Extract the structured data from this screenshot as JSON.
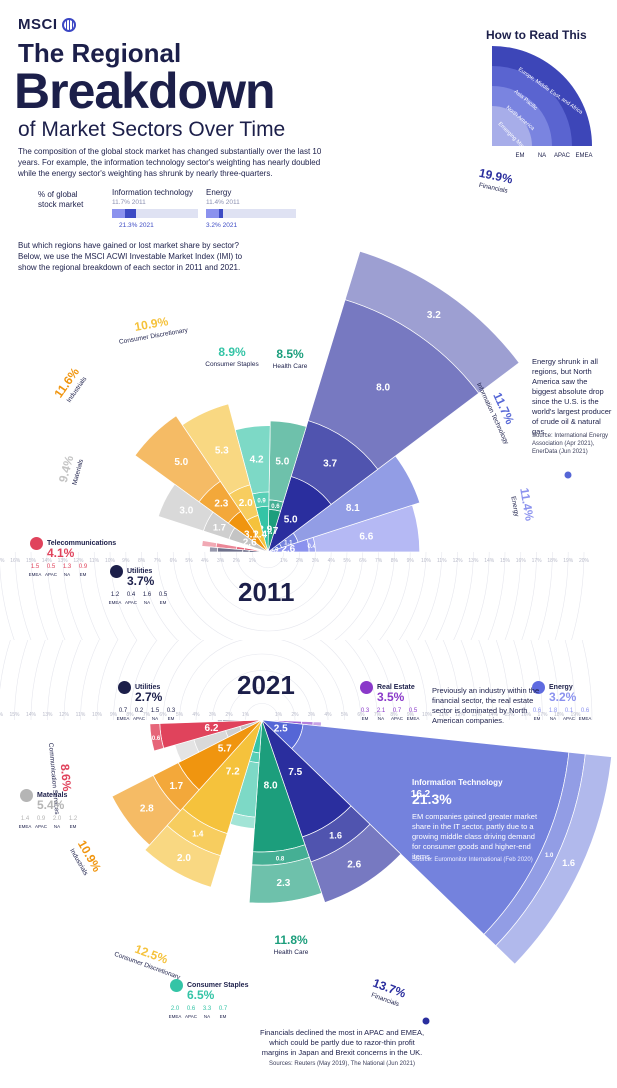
{
  "header": {
    "brand": "MSCI",
    "title_line1": "The Regional",
    "title_line2": "Breakdown",
    "title_line3": "of Market Sectors Over  Time"
  },
  "intro": "The composition of the global stock market has changed substantially over the last 10 years. For example, the information technology sector's weighting has nearly doubled while the energy sector's weighting has shrunk by nearly three-quarters.",
  "intro2": "But which regions have gained or lost market share by sector? Below, we use the MSCI ACWI Investable Market Index (IMI) to show the regional breakdown of each sector in 2011 and 2021.",
  "legend": {
    "axis_label_1": "% of global",
    "axis_label_2": "stock market",
    "it_label": "Information technology",
    "it_2011": "11.7% 2011",
    "it_2021": "21.3% 2021",
    "energy_label": "Energy",
    "energy_2011": "11.4% 2011",
    "energy_2021": "3.2% 2021"
  },
  "how_to_read": {
    "title": "How to Read This",
    "rings": [
      "Europe, Middle East, and Africa",
      "Asia Pacific",
      "North America",
      "Emerging Markets"
    ],
    "axis": [
      "EM",
      "NA",
      "APAC",
      "EMEA"
    ]
  },
  "colors": {
    "financials": "#2a2e9e",
    "it": "#5566d6",
    "energy": "#8b92ee",
    "health": "#1c9e7c",
    "staples": "#34c4a6",
    "discretionary": "#f5c23c",
    "industrials": "#f0950f",
    "materials": "#c4c4c4",
    "telecom": "#e0435c",
    "utilities": "#1c1f4a",
    "real_estate": "#8a39c9"
  },
  "chart_data": [
    {
      "type": "polar-bar",
      "year": "2011",
      "radial_ticks": [
        "1%",
        "2%",
        "3%",
        "4%",
        "5%",
        "6%",
        "7%",
        "8%",
        "9%",
        "10%",
        "11%",
        "12%",
        "13%",
        "14%",
        "15%",
        "16%",
        "17%",
        "18%",
        "19%",
        "20%"
      ],
      "sectors": [
        {
          "name": "Telecommunications",
          "total": "4.1%",
          "regions": [
            "EMEA",
            "APAC",
            "NA",
            "EM"
          ],
          "values": [
            1.5,
            0.5,
            1.3,
            0.9
          ]
        },
        {
          "name": "Utilities",
          "total": "3.7%",
          "regions": [
            "EMEA",
            "APAC",
            "NA",
            "EM"
          ],
          "values": [
            1.2,
            0.4,
            1.6,
            0.5
          ]
        },
        {
          "name": "Materials",
          "total": "9.4%",
          "values": [
            2.6,
            1.7,
            3.0
          ]
        },
        {
          "name": "Industrials",
          "total": "11.6%",
          "values": [
            3.1,
            2.3,
            5.0
          ]
        },
        {
          "name": "Consumer Discretionary",
          "total": "10.9%",
          "values": [
            2.4,
            2.0,
            5.3
          ]
        },
        {
          "name": "Consumer Staples",
          "total": "8.9%",
          "values": [
            2.9,
            0.9,
            4.2
          ]
        },
        {
          "name": "Health Care",
          "total": "8.5%",
          "values": [
            2.7,
            0.6,
            5.0
          ]
        },
        {
          "name": "Financials",
          "total": "19.9%",
          "values": [
            5.0,
            3.7,
            8.0,
            3.2
          ]
        },
        {
          "name": "Information Technology",
          "total": "11.7%",
          "values": [
            0.9,
            1.1,
            8.1
          ]
        },
        {
          "name": "Energy",
          "total": "11.4%",
          "values": [
            2.6,
            0.4,
            6.6
          ]
        }
      ]
    },
    {
      "type": "polar-bar",
      "year": "2021",
      "radial_ticks": [
        "1%",
        "2%",
        "3%",
        "4%",
        "5%",
        "6%",
        "7%",
        "8%",
        "9%",
        "10%",
        "11%",
        "12%",
        "13%",
        "14%",
        "15%",
        "16%",
        "17%",
        "18%",
        "19%",
        "20%"
      ],
      "sectors": [
        {
          "name": "Utilities",
          "total": "2.7%",
          "regions": [
            "EMEA",
            "APAC",
            "NA",
            "EM"
          ],
          "values": [
            0.7,
            0.2,
            1.5,
            0.3
          ]
        },
        {
          "name": "Communication Services",
          "total": "8.6%",
          "values": [
            6.2,
            0.6
          ]
        },
        {
          "name": "Materials",
          "total": "5.4%",
          "regions": [
            "EMEA",
            "APAC",
            "NA",
            "EM"
          ],
          "values": [
            1.4,
            0.9,
            2.0,
            1.2
          ]
        },
        {
          "name": "Industrials",
          "total": "10.9%",
          "values": [
            5.7,
            1.7,
            2.8
          ]
        },
        {
          "name": "Consumer Discretionary",
          "total": "12.5%",
          "values": [
            7.2,
            1.4,
            2.0
          ]
        },
        {
          "name": "Consumer Staples",
          "total": "6.5%",
          "regions": [
            "EMEA",
            "APAC",
            "NA",
            "EM"
          ],
          "values": [
            2.0,
            0.6,
            3.3,
            0.7
          ]
        },
        {
          "name": "Health Care",
          "total": "11.8%",
          "values": [
            8.0,
            0.8,
            2.3
          ]
        },
        {
          "name": "Financials",
          "total": "13.7%",
          "values": [
            7.5,
            1.6,
            2.6
          ]
        },
        {
          "name": "Information Technology",
          "total": "21.3%",
          "values": [
            2.5,
            16.2,
            1.0,
            1.6
          ]
        },
        {
          "name": "Real Estate",
          "total": "3.5%",
          "regions": [
            "EM",
            "NA",
            "APAC",
            "EMEA"
          ],
          "values": [
            0.3,
            2.1,
            0.7,
            0.5
          ]
        },
        {
          "name": "Energy",
          "total": "3.2%",
          "regions": [
            "EM",
            "NA",
            "APAC",
            "EMEA"
          ],
          "values": [
            0.6,
            1.8,
            0.1,
            0.6
          ]
        }
      ]
    }
  ],
  "notes": {
    "energy_2011": "Energy shrunk in all regions, but North America saw the biggest absolute drop since the U.S. is the world's largest producer of crude oil & natural gas.",
    "energy_2011_src": "Source: International Energy Association (Apr 2021), EnerData (Jun 2021)",
    "real_estate_2021": "Previously an industry within the financial sector, the real estate sector is dominated by North American companies.",
    "it_2021_title": "Information Technology",
    "it_2021_total": "21.3%",
    "it_2021": "EM companies gained greater market share in the IT sector, partly due to a growing middle class driving demand for consumer goods and higher-end items.",
    "it_2021_src": "Source: Euromonitor International (Feb 2020)",
    "fin_2021": "Financials declined the most in APAC and EMEA, which could be partly due to razor-thin profit margins in Japan and Brexit concerns in the UK.",
    "fin_2021_src": "Sources: Reuters (May 2019), The National (Jun 2021)"
  }
}
